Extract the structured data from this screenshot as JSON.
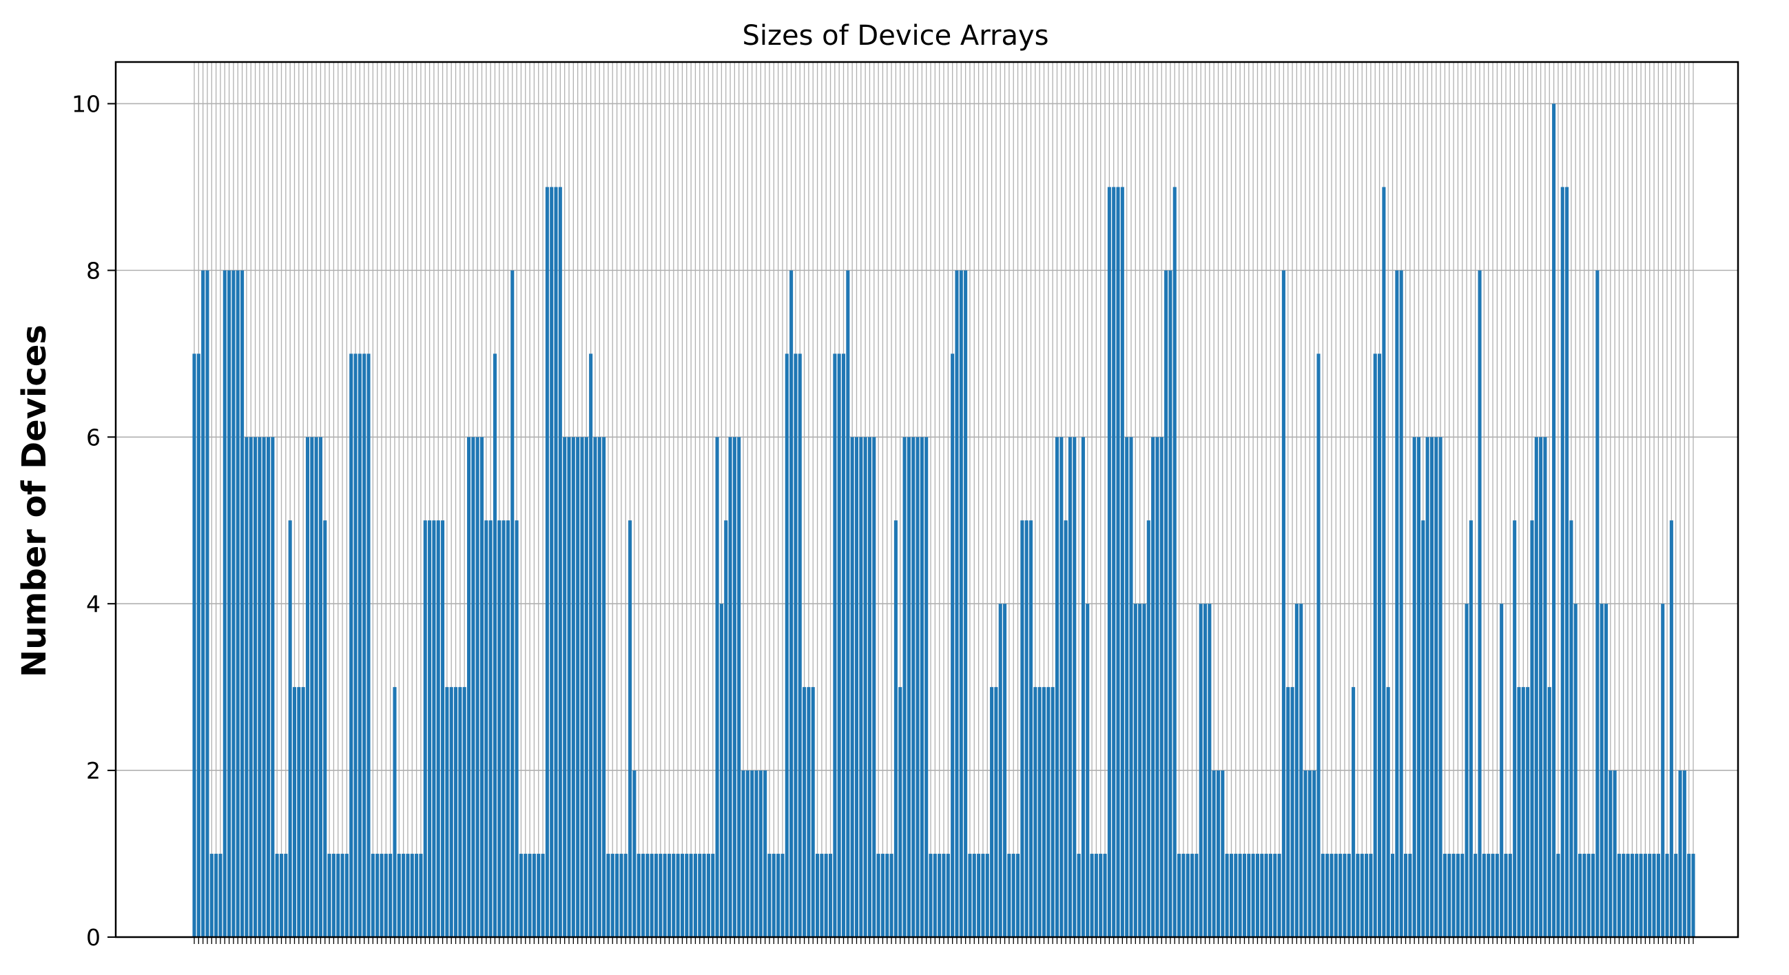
{
  "chart_data": {
    "type": "bar",
    "title": "Sizes of Device Arrays",
    "xlabel": "",
    "ylabel": "Number of Devices",
    "ylim": [
      0,
      10.5
    ],
    "yticks": [
      0,
      2,
      4,
      6,
      8,
      10
    ],
    "grid": true,
    "bar_color": "#1f77b4",
    "grid_color": "#b0b0b0",
    "x_tick_labels_shown": false,
    "values": [
      7,
      7,
      8,
      8,
      1,
      1,
      1,
      8,
      8,
      8,
      8,
      8,
      6,
      6,
      6,
      6,
      6,
      6,
      6,
      1,
      1,
      1,
      5,
      3,
      3,
      3,
      6,
      6,
      6,
      6,
      5,
      1,
      1,
      1,
      1,
      1,
      7,
      7,
      7,
      7,
      7,
      1,
      1,
      1,
      1,
      1,
      3,
      1,
      1,
      1,
      1,
      1,
      1,
      5,
      5,
      5,
      5,
      5,
      3,
      3,
      3,
      3,
      3,
      6,
      6,
      6,
      6,
      5,
      5,
      7,
      5,
      5,
      5,
      8,
      5,
      1,
      1,
      1,
      1,
      1,
      1,
      9,
      9,
      9,
      9,
      6,
      6,
      6,
      6,
      6,
      6,
      7,
      6,
      6,
      6,
      1,
      1,
      1,
      1,
      1,
      5,
      2,
      1,
      1,
      1,
      1,
      1,
      1,
      1,
      1,
      1,
      1,
      1,
      1,
      1,
      1,
      1,
      1,
      1,
      1,
      6,
      4,
      5,
      6,
      6,
      6,
      2,
      2,
      2,
      2,
      2,
      2,
      1,
      1,
      1,
      1,
      7,
      8,
      7,
      7,
      3,
      3,
      3,
      1,
      1,
      1,
      1,
      7,
      7,
      7,
      8,
      6,
      6,
      6,
      6,
      6,
      6,
      1,
      1,
      1,
      1,
      5,
      3,
      6,
      6,
      6,
      6,
      6,
      6,
      1,
      1,
      1,
      1,
      1,
      7,
      8,
      8,
      8,
      1,
      1,
      1,
      1,
      1,
      3,
      3,
      4,
      4,
      1,
      1,
      1,
      5,
      5,
      5,
      3,
      3,
      3,
      3,
      3,
      6,
      6,
      5,
      6,
      6,
      1,
      6,
      4,
      1,
      1,
      1,
      1,
      9,
      9,
      9,
      9,
      6,
      6,
      4,
      4,
      4,
      5,
      6,
      6,
      6,
      8,
      8,
      9,
      1,
      1,
      1,
      1,
      1,
      4,
      4,
      4,
      2,
      2,
      2,
      1,
      1,
      1,
      1,
      1,
      1,
      1,
      1,
      1,
      1,
      1,
      1,
      1,
      8,
      3,
      3,
      4,
      4,
      2,
      2,
      2,
      7,
      1,
      1,
      1,
      1,
      1,
      1,
      1,
      3,
      1,
      1,
      1,
      1,
      7,
      7,
      9,
      3,
      1,
      8,
      8,
      1,
      1,
      6,
      6,
      5,
      6,
      6,
      6,
      6,
      1,
      1,
      1,
      1,
      1,
      4,
      5,
      1,
      8,
      1,
      1,
      1,
      1,
      4,
      1,
      1,
      5,
      3,
      3,
      3,
      5,
      6,
      6,
      6,
      3,
      10,
      1,
      9,
      9,
      5,
      4,
      1,
      1,
      1,
      1,
      8,
      4,
      4,
      2,
      2,
      1,
      1,
      1,
      1,
      1,
      1,
      1,
      1,
      1,
      1,
      4,
      1,
      5,
      1,
      2,
      2,
      1,
      1
    ]
  }
}
